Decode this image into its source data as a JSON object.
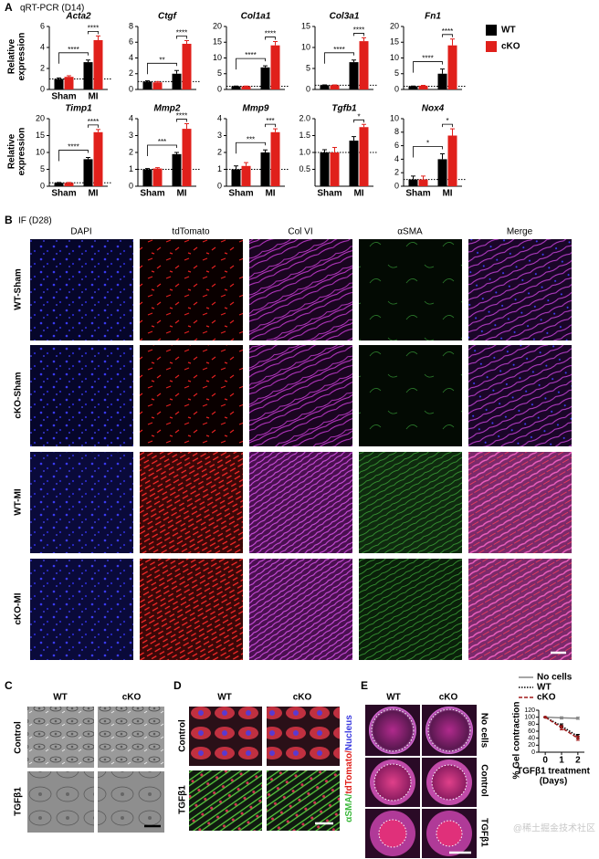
{
  "panel_a": {
    "label": "A",
    "title": "qRT-PCR (D14)",
    "y_label": [
      "Relative",
      "expression"
    ]
  },
  "panel_b": {
    "label": "B",
    "title": "IF (D28)",
    "columns": [
      "DAPI",
      "tdTomato",
      "Col VI",
      "αSMA",
      "Merge"
    ],
    "rows": [
      "WT-Sham",
      "cKO-Sham",
      "WT-MI",
      "cKO-MI"
    ]
  },
  "panel_c": {
    "label": "C",
    "columns": [
      "WT",
      "cKO"
    ],
    "rows": [
      "Control",
      "TGFβ1"
    ]
  },
  "panel_d": {
    "label": "D",
    "columns": [
      "WT",
      "cKO"
    ],
    "rows": [
      "Control",
      "TGFβ1"
    ],
    "stain_label": [
      "αSMA/",
      "tdTomato/",
      "Nucleus"
    ]
  },
  "panel_e": {
    "label": "E",
    "columns": [
      "WT",
      "cKO"
    ],
    "rows": [
      "No cells",
      "Control",
      "TGFβ1"
    ]
  },
  "watermark": "@稀土掘金技术社区",
  "chart_data": [
    {
      "type": "bar",
      "title": "Acta2",
      "categories": [
        "Sham",
        "MI"
      ],
      "show_categories": true,
      "ylim": [
        0,
        6
      ],
      "yticks": [
        0,
        2,
        4,
        6
      ],
      "reference_line": 1,
      "series": [
        {
          "name": "WT",
          "color": "#000000",
          "values": [
            1.0,
            2.6
          ],
          "errors": [
            0.1,
            0.2
          ]
        },
        {
          "name": "cKO",
          "color": "#e0201b",
          "values": [
            1.2,
            4.7
          ],
          "errors": [
            0.1,
            0.4
          ]
        }
      ],
      "significance": {
        "sham_vs_mi": "****",
        "wt_vs_cko": "****"
      }
    },
    {
      "type": "bar",
      "title": "Ctgf",
      "categories": [
        "Sham",
        "MI"
      ],
      "show_categories": false,
      "ylim": [
        0,
        8
      ],
      "yticks": [
        0,
        2,
        4,
        6,
        8
      ],
      "reference_line": 1,
      "series": [
        {
          "name": "WT",
          "color": "#000000",
          "values": [
            1.0,
            2.0
          ],
          "errors": [
            0.1,
            0.4
          ]
        },
        {
          "name": "cKO",
          "color": "#e0201b",
          "values": [
            0.9,
            5.8
          ],
          "errors": [
            0.1,
            0.4
          ]
        }
      ],
      "significance": {
        "sham_vs_mi": "**",
        "wt_vs_cko": "****"
      }
    },
    {
      "type": "bar",
      "title": "Col1a1",
      "categories": [
        "Sham",
        "MI"
      ],
      "show_categories": false,
      "ylim": [
        0,
        20
      ],
      "yticks": [
        0,
        5,
        10,
        15,
        20
      ],
      "reference_line": 1,
      "series": [
        {
          "name": "WT",
          "color": "#000000",
          "values": [
            1.0,
            7.0
          ],
          "errors": [
            0.1,
            0.5
          ]
        },
        {
          "name": "cKO",
          "color": "#e0201b",
          "values": [
            1.0,
            14.0
          ],
          "errors": [
            0.1,
            1.2
          ]
        }
      ],
      "significance": {
        "sham_vs_mi": "****",
        "wt_vs_cko": "****"
      }
    },
    {
      "type": "bar",
      "title": "Col3a1",
      "categories": [
        "Sham",
        "MI"
      ],
      "show_categories": false,
      "ylim": [
        0,
        15
      ],
      "yticks": [
        0,
        5,
        10,
        15
      ],
      "reference_line": 1,
      "series": [
        {
          "name": "WT",
          "color": "#000000",
          "values": [
            1.0,
            6.5
          ],
          "errors": [
            0.1,
            0.5
          ]
        },
        {
          "name": "cKO",
          "color": "#e0201b",
          "values": [
            1.0,
            11.5
          ],
          "errors": [
            0.1,
            0.8
          ]
        }
      ],
      "significance": {
        "sham_vs_mi": "****",
        "wt_vs_cko": "****"
      }
    },
    {
      "type": "bar",
      "title": "Fn1",
      "categories": [
        "Sham",
        "MI"
      ],
      "show_categories": false,
      "ylim": [
        0,
        20
      ],
      "yticks": [
        0,
        5,
        10,
        15,
        20
      ],
      "reference_line": 1,
      "series": [
        {
          "name": "WT",
          "color": "#000000",
          "values": [
            1.0,
            5.0
          ],
          "errors": [
            0.1,
            1.5
          ]
        },
        {
          "name": "cKO",
          "color": "#e0201b",
          "values": [
            1.2,
            14.0
          ],
          "errors": [
            0.1,
            2.0
          ]
        }
      ],
      "significance": {
        "sham_vs_mi": "****",
        "wt_vs_cko": "****"
      }
    },
    {
      "type": "bar",
      "title": "Timp1",
      "categories": [
        "Sham",
        "MI"
      ],
      "show_categories": true,
      "ylim": [
        0,
        20
      ],
      "yticks": [
        0,
        5,
        10,
        15,
        20
      ],
      "reference_line": 1,
      "series": [
        {
          "name": "WT",
          "color": "#000000",
          "values": [
            1.0,
            8.0
          ],
          "errors": [
            0.1,
            0.5
          ]
        },
        {
          "name": "cKO",
          "color": "#e0201b",
          "values": [
            1.0,
            16.0
          ],
          "errors": [
            0.1,
            0.8
          ]
        }
      ],
      "significance": {
        "sham_vs_mi": "****",
        "wt_vs_cko": "****"
      }
    },
    {
      "type": "bar",
      "title": "Mmp2",
      "categories": [
        "Sham",
        "MI"
      ],
      "show_categories": true,
      "ylim": [
        0,
        4
      ],
      "yticks": [
        0,
        1,
        2,
        3,
        4
      ],
      "reference_line": 1,
      "series": [
        {
          "name": "WT",
          "color": "#000000",
          "values": [
            1.0,
            1.9
          ],
          "errors": [
            0.05,
            0.1
          ]
        },
        {
          "name": "cKO",
          "color": "#e0201b",
          "values": [
            1.05,
            3.4
          ],
          "errors": [
            0.05,
            0.3
          ]
        }
      ],
      "significance": {
        "sham_vs_mi": "***",
        "wt_vs_cko": "****"
      }
    },
    {
      "type": "bar",
      "title": "Mmp9",
      "categories": [
        "Sham",
        "MI"
      ],
      "show_categories": true,
      "ylim": [
        0,
        4
      ],
      "yticks": [
        0,
        1,
        2,
        3,
        4
      ],
      "reference_line": 1,
      "series": [
        {
          "name": "WT",
          "color": "#000000",
          "values": [
            1.0,
            2.0
          ],
          "errors": [
            0.2,
            0.15
          ]
        },
        {
          "name": "cKO",
          "color": "#e0201b",
          "values": [
            1.2,
            3.2
          ],
          "errors": [
            0.2,
            0.2
          ]
        }
      ],
      "significance": {
        "sham_vs_mi": "***",
        "wt_vs_cko": "***"
      }
    },
    {
      "type": "bar",
      "title": "Tgfb1",
      "categories": [
        "Sham",
        "MI"
      ],
      "show_categories": true,
      "ylim": [
        0,
        2
      ],
      "yticks": [
        0.5,
        {
          "value": 1,
          "label": "1.0"
        },
        1.5,
        {
          "value": 2,
          "label": "2.0"
        }
      ],
      "reference_line": 1,
      "series": [
        {
          "name": "WT",
          "color": "#000000",
          "values": [
            1.0,
            1.35
          ],
          "errors": [
            0.08,
            0.12
          ]
        },
        {
          "name": "cKO",
          "color": "#e0201b",
          "values": [
            1.0,
            1.75
          ],
          "errors": [
            0.15,
            0.08
          ]
        }
      ],
      "significance": {
        "wt_vs_cko": "*"
      }
    },
    {
      "type": "bar",
      "title": "Nox4",
      "categories": [
        "Sham",
        "MI"
      ],
      "show_categories": true,
      "ylim": [
        0,
        10
      ],
      "yticks": [
        0,
        2,
        4,
        6,
        8,
        10
      ],
      "reference_line": 1,
      "series": [
        {
          "name": "WT",
          "color": "#000000",
          "values": [
            1.0,
            4.0
          ],
          "errors": [
            0.5,
            0.8
          ]
        },
        {
          "name": "cKO",
          "color": "#e0201b",
          "values": [
            1.0,
            7.5
          ],
          "errors": [
            0.5,
            1.0
          ]
        }
      ],
      "significance": {
        "sham_vs_mi": "*",
        "wt_vs_cko": "*"
      }
    },
    {
      "type": "line",
      "y_label": "% Gel contraction",
      "x_label": [
        "TGFβ1 treatment",
        "(Days)"
      ],
      "x": [
        0,
        1,
        2
      ],
      "xlim": [
        -0.4,
        2.4
      ],
      "xticks": [
        0,
        1,
        2
      ],
      "ylim": [
        0,
        120
      ],
      "yticks": [
        0,
        20,
        40,
        60,
        80,
        100,
        120
      ],
      "series": [
        {
          "name": "No cells",
          "color": "#888888",
          "line_style": "solid",
          "values": [
            100,
            98,
            97
          ],
          "errors": [
            1,
            3,
            3
          ]
        },
        {
          "name": "WT",
          "color": "#000000",
          "line_style": "dotted",
          "values": [
            100,
            75,
            45
          ],
          "errors": [
            1,
            6,
            6
          ]
        },
        {
          "name": "cKO",
          "color": "#a01818",
          "line_style": "dashed",
          "values": [
            100,
            70,
            40
          ],
          "errors": [
            1,
            6,
            6
          ]
        }
      ]
    }
  ]
}
